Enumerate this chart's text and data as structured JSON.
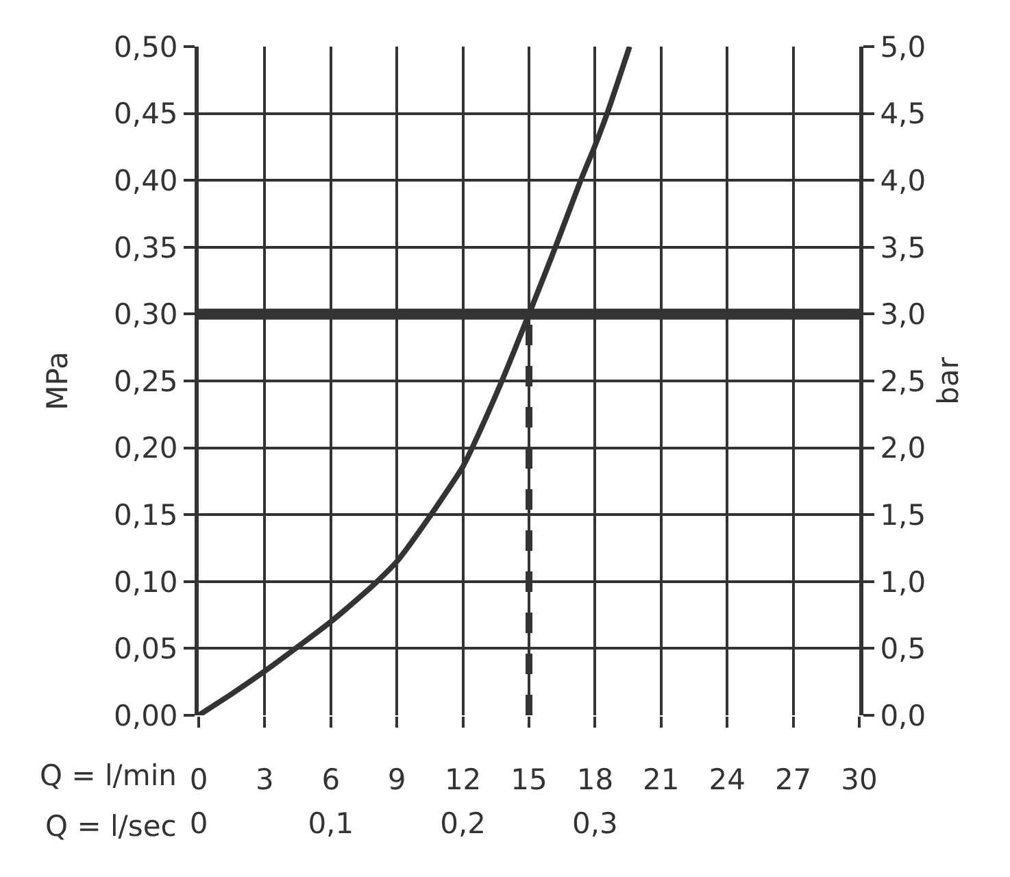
{
  "chart_data": {
    "type": "line",
    "xlabel": "Q = l/min",
    "x2label": "Q = l/sec",
    "ylabel": "MPa",
    "y2label": "bar",
    "x": [
      0,
      1.5,
      3,
      4.4,
      6,
      7.5,
      8.1,
      9,
      10.55,
      12,
      12.42,
      13.77,
      15,
      16.2,
      17.35,
      18,
      18.55,
      19.57
    ],
    "series": [
      {
        "color": "#333333",
        "values": [
          0,
          0.016,
          0.033,
          0.05,
          0.07,
          0.091,
          0.1,
          0.115,
          0.15,
          0.186,
          0.2,
          0.25,
          0.3,
          0.35,
          0.4,
          0.426,
          0.45,
          0.5
        ]
      }
    ],
    "xlim": [
      0,
      30
    ],
    "xticks": [
      0,
      3,
      6,
      9,
      12,
      15,
      18,
      21,
      24,
      27,
      30
    ],
    "x2lim": [
      0,
      0.5
    ],
    "x2ticks": [
      0,
      {
        "value": 0.1,
        "label": "0,1"
      },
      {
        "value": 0.2,
        "label": "0,2"
      },
      {
        "value": 0.3,
        "label": "0,3"
      }
    ],
    "ylim": [
      0,
      0.5
    ],
    "yticks": [
      {
        "value": 0,
        "label": "0,00"
      },
      {
        "value": 0.05,
        "label": "0,05"
      },
      {
        "value": 0.1,
        "label": "0,10"
      },
      {
        "value": 0.15,
        "label": "0,15"
      },
      {
        "value": 0.2,
        "label": "0,20"
      },
      {
        "value": 0.25,
        "label": "0,25"
      },
      {
        "value": 0.3,
        "label": "0,30"
      },
      {
        "value": 0.35,
        "label": "0,35"
      },
      {
        "value": 0.4,
        "label": "0,40"
      },
      {
        "value": 0.45,
        "label": "0,45"
      },
      {
        "value": 0.5,
        "label": "0,50"
      }
    ],
    "y2lim": [
      0,
      5
    ],
    "y2ticks": [
      {
        "value": 0,
        "label": "0,0"
      },
      {
        "value": 0.5,
        "label": "0,5"
      },
      {
        "value": 1,
        "label": "1,0"
      },
      {
        "value": 1.5,
        "label": "1,5"
      },
      {
        "value": 2,
        "label": "2,0"
      },
      {
        "value": 2.5,
        "label": "2,5"
      },
      {
        "value": 3,
        "label": "3,0"
      },
      {
        "value": 3.5,
        "label": "3,5"
      },
      {
        "value": 4,
        "label": "4,0"
      },
      {
        "value": 4.5,
        "label": "4,5"
      },
      {
        "value": 5,
        "label": "5,0"
      }
    ],
    "ref_lines": [
      {
        "axis": "y",
        "value": 0.3,
        "color": "#333333",
        "line_style": "solid"
      },
      {
        "axis": "x",
        "value": 15,
        "color": "#333333",
        "line_style": "dashed"
      }
    ],
    "grid": true,
    "line_style": "solid"
  }
}
